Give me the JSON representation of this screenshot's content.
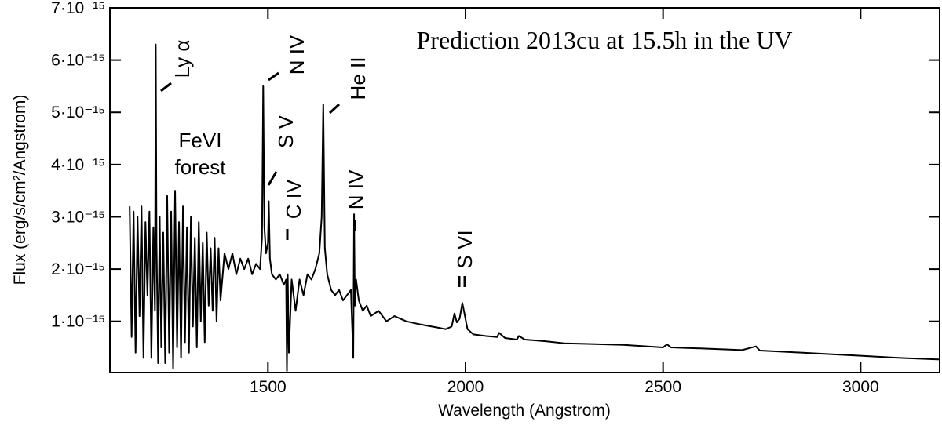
{
  "chart_data": {
    "type": "line",
    "title": "Prediction 2013cu at 15.5h in the UV",
    "x_label": "Wavelength (Angstrom)",
    "y_label": "Flux (erg/s/cm²/Angstrom)",
    "annotations": [
      "Ly α",
      "N IV",
      "S V",
      "He II",
      "C IV",
      "N IV",
      "S VI",
      "FeVI",
      "forest"
    ],
    "color": "#000000",
    "xlim": [
      1100,
      3200
    ],
    "xticks": [
      1500,
      2000,
      2500,
      3000
    ],
    "ylim": [
      2e-17,
      7e-15
    ],
    "yticks": [
      {
        "value": 1e-15,
        "label": "1·10⁻¹⁵"
      },
      {
        "value": 2e-15,
        "label": "2·10⁻¹⁵"
      },
      {
        "value": 3e-15,
        "label": "3·10⁻¹⁵"
      },
      {
        "value": 4e-15,
        "label": "4·10⁻¹⁵"
      },
      {
        "value": 5e-15,
        "label": "5·10⁻¹⁵"
      },
      {
        "value": 6e-15,
        "label": "6·10⁻¹⁵"
      },
      {
        "value": 7e-15,
        "label": "7·10⁻¹⁵"
      }
    ],
    "x": [
      1150,
      1155,
      1160,
      1165,
      1170,
      1175,
      1180,
      1185,
      1190,
      1195,
      1200,
      1205,
      1210,
      1214,
      1216,
      1218,
      1222,
      1226,
      1230,
      1235,
      1240,
      1245,
      1250,
      1255,
      1260,
      1265,
      1270,
      1275,
      1280,
      1285,
      1290,
      1295,
      1300,
      1305,
      1310,
      1315,
      1320,
      1325,
      1330,
      1335,
      1340,
      1345,
      1350,
      1355,
      1360,
      1365,
      1370,
      1375,
      1380,
      1390,
      1400,
      1410,
      1420,
      1430,
      1440,
      1450,
      1460,
      1470,
      1480,
      1485,
      1488,
      1491,
      1495,
      1500,
      1502,
      1505,
      1510,
      1520,
      1530,
      1540,
      1546,
      1548,
      1550,
      1553,
      1560,
      1570,
      1580,
      1590,
      1600,
      1610,
      1620,
      1630,
      1636,
      1640,
      1644,
      1650,
      1660,
      1670,
      1680,
      1690,
      1700,
      1710,
      1716,
      1718,
      1720,
      1723,
      1730,
      1740,
      1750,
      1760,
      1780,
      1800,
      1820,
      1850,
      1880,
      1900,
      1930,
      1950,
      1965,
      1972,
      1978,
      1985,
      1992,
      1996,
      2005,
      2020,
      2050,
      2080,
      2085,
      2100,
      2130,
      2135,
      2150,
      2200,
      2250,
      2300,
      2400,
      2500,
      2510,
      2520,
      2600,
      2700,
      2735,
      2745,
      2800,
      2900,
      3000,
      3100,
      3200
    ],
    "values": [
      3.2e-15,
      7e-16,
      3.1e-15,
      4e-16,
      3e-15,
      1.1e-15,
      3.2e-15,
      3e-16,
      2.9e-15,
      1.5e-15,
      3.1e-15,
      3e-16,
      2.8e-15,
      1.2e-15,
      6.3e-15,
      2.5e-15,
      2e-16,
      3e-15,
      5e-16,
      2.7e-15,
      2e-16,
      3.4e-15,
      4e-16,
      3.1e-15,
      1e-16,
      3.5e-15,
      5e-16,
      2.9e-15,
      3e-16,
      3.2e-15,
      6e-16,
      2.8e-15,
      4e-16,
      3e-15,
      9e-16,
      2.6e-15,
      5e-16,
      2.9e-15,
      1e-15,
      2.5e-15,
      6e-16,
      2.7e-15,
      1.3e-15,
      2.4e-15,
      1.2e-15,
      2.6e-15,
      1e-15,
      2.4e-15,
      1.4e-15,
      2.3e-15,
      2e-15,
      2.3e-15,
      1.9e-15,
      2.2e-15,
      2e-15,
      2.2e-15,
      1.9e-15,
      2.1e-15,
      2e-15,
      2.6e-15,
      5.5e-15,
      2.8e-15,
      2.3e-15,
      2.5e-15,
      3.3e-15,
      2.2e-15,
      1.9e-15,
      1.8e-15,
      1.9e-15,
      1.7e-15,
      1.8e-15,
      5e-17,
      1.9e-15,
      4e-16,
      1.8e-15,
      1.2e-15,
      1.8e-15,
      1.5e-15,
      1.9e-15,
      1.8e-15,
      2e-15,
      2.3e-15,
      3e-15,
      5.15e-15,
      2.4e-15,
      1.9e-15,
      1.6e-15,
      1.5e-15,
      1.6e-15,
      1.4e-15,
      1.5e-15,
      1.6e-15,
      3e-16,
      3.05e-15,
      1.3e-15,
      1.8e-15,
      1.4e-15,
      1.2e-15,
      1.3e-15,
      1.1e-15,
      1.2e-15,
      1e-15,
      1.1e-15,
      1e-15,
      9.5e-16,
      9.2e-16,
      8.8e-16,
      8.5e-16,
      9e-16,
      1.15e-15,
      9.8e-16,
      1.05e-15,
      1.35e-15,
      1.2e-15,
      8.5e-16,
      7.5e-16,
      7.2e-16,
      7e-16,
      7.8e-16,
      6.8e-16,
      6.5e-16,
      7.2e-16,
      6.5e-16,
      6.2e-16,
      5.8e-16,
      5.7e-16,
      5.5e-16,
      5e-16,
      5.6e-16,
      5e-16,
      4.8e-16,
      4.5e-16,
      5.2e-16,
      4.4e-16,
      4.2e-16,
      3.8e-16,
      3.4e-16,
      3e-16,
      2.7e-16
    ]
  }
}
